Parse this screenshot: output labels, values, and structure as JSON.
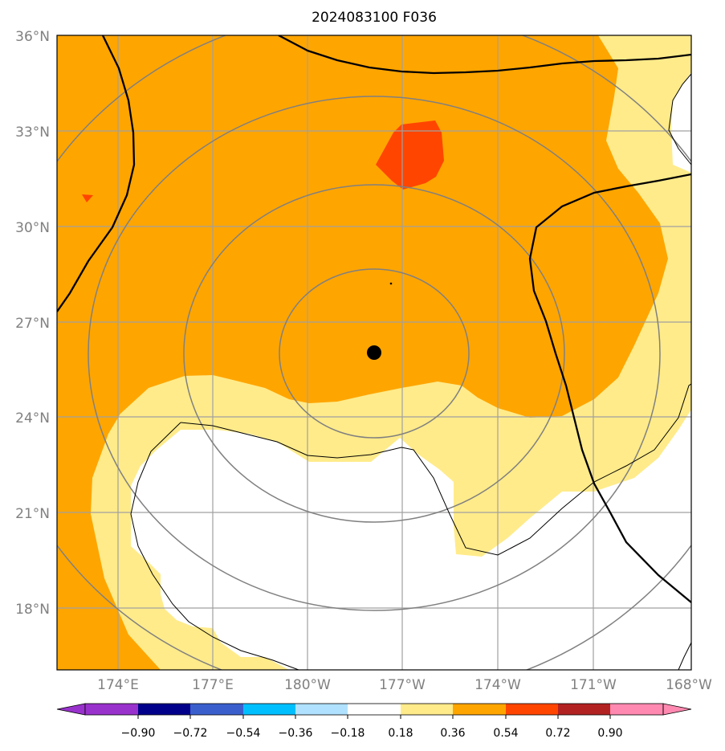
{
  "title": "2024083100 F036",
  "map": {
    "lat_labels": [
      "36°N",
      "33°N",
      "30°N",
      "27°N",
      "24°N",
      "21°N",
      "18°N"
    ],
    "lon_labels": [
      "174°E",
      "177°E",
      "180°W",
      "177°W",
      "174°W",
      "171°W",
      "168°W"
    ],
    "center_marker": {
      "lat": 26.0,
      "lon": -177.2
    }
  },
  "colorbar": {
    "tick_labels": [
      "−0.90",
      "−0.72",
      "−0.54",
      "−0.36",
      "−0.18",
      "0.18",
      "0.36",
      "0.54",
      "0.72",
      "0.90"
    ],
    "colors": [
      "#9932cc",
      "#00008b",
      "#3a5fcd",
      "#00bfff",
      "#b0e2ff",
      "#ffffff",
      "#ffeb8a",
      "#ffa500",
      "#ff4500",
      "#b22222",
      "#ff89b0"
    ],
    "extend": "both"
  }
}
